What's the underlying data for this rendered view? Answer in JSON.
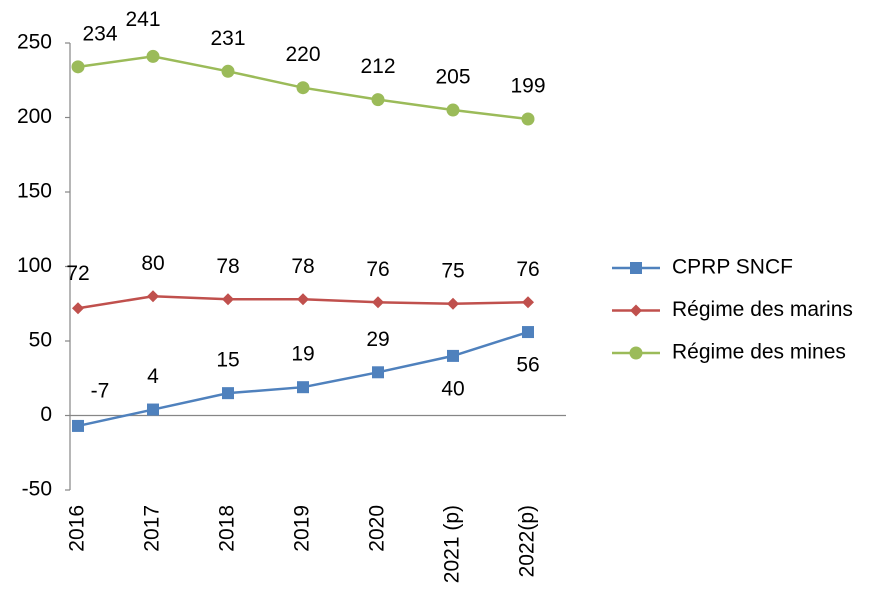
{
  "chart_data": {
    "type": "line",
    "categories": [
      "2016",
      "2017",
      "2018",
      "2019",
      "2020",
      "2021 (p)",
      "2022(p)"
    ],
    "series": [
      {
        "name": "CPRP SNCF",
        "color": "#4f81bd",
        "marker": "square",
        "values": [
          -7,
          4,
          15,
          19,
          29,
          40,
          56
        ]
      },
      {
        "name": "Régime des marins",
        "color": "#c0504d",
        "marker": "diamond",
        "values": [
          72,
          80,
          78,
          78,
          76,
          75,
          76
        ]
      },
      {
        "name": "Régime des mines",
        "color": "#9bbb59",
        "marker": "circle",
        "values": [
          234,
          241,
          231,
          220,
          212,
          205,
          199
        ]
      }
    ],
    "ylim": [
      -50,
      250
    ],
    "yticks": [
      -50,
      0,
      50,
      100,
      150,
      200,
      250
    ],
    "grid": false,
    "legend": "right"
  }
}
